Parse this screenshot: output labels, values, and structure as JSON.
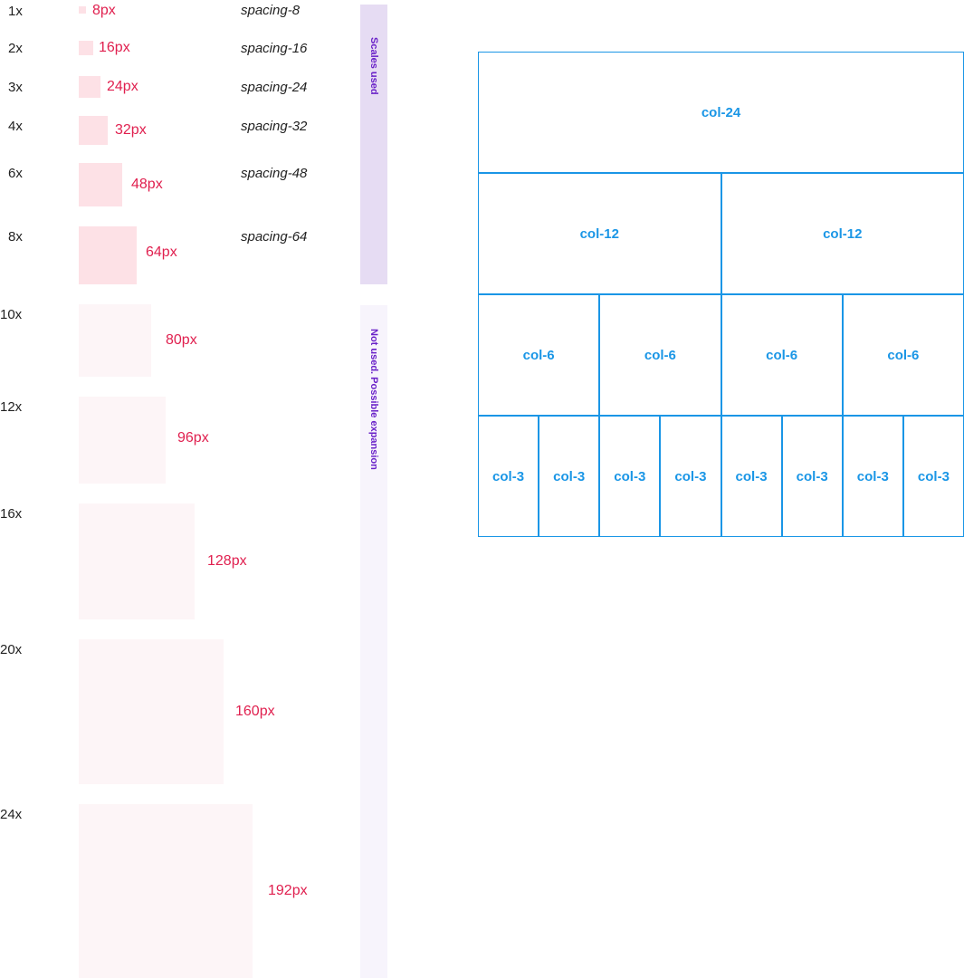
{
  "scale": {
    "used": [
      {
        "multiplier": "1x",
        "size_label": "8px",
        "token": "spacing-8"
      },
      {
        "multiplier": "2x",
        "size_label": "16px",
        "token": "spacing-16"
      },
      {
        "multiplier": "3x",
        "size_label": "24px",
        "token": "spacing-24"
      },
      {
        "multiplier": "4x",
        "size_label": "32px",
        "token": "spacing-32"
      },
      {
        "multiplier": "6x",
        "size_label": "48px",
        "token": "spacing-48"
      },
      {
        "multiplier": "8x",
        "size_label": "64px",
        "token": "spacing-64"
      }
    ],
    "unused": [
      {
        "multiplier": "10x",
        "size_label": "80px"
      },
      {
        "multiplier": "12x",
        "size_label": "96px"
      },
      {
        "multiplier": "16x",
        "size_label": "128px"
      },
      {
        "multiplier": "20x",
        "size_label": "160px"
      },
      {
        "multiplier": "24x",
        "size_label": "192px"
      }
    ],
    "used_band_label": "Scales used",
    "unused_band_label": "Not used. Possible expansion"
  },
  "grid": {
    "rows": [
      [
        "col-24"
      ],
      [
        "col-12",
        "col-12"
      ],
      [
        "col-6",
        "col-6",
        "col-6",
        "col-6"
      ],
      [
        "col-3",
        "col-3",
        "col-3",
        "col-3",
        "col-3",
        "col-3",
        "col-3",
        "col-3"
      ]
    ]
  },
  "colors": {
    "swatch_used": "#fde1e6",
    "swatch_unused": "#fdf5f7",
    "size_label": "#e0204f",
    "band_used": "#e6dcf3",
    "band_unused": "#f7f4fc",
    "band_label": "#6a22c8",
    "grid": "#1a96e6"
  }
}
